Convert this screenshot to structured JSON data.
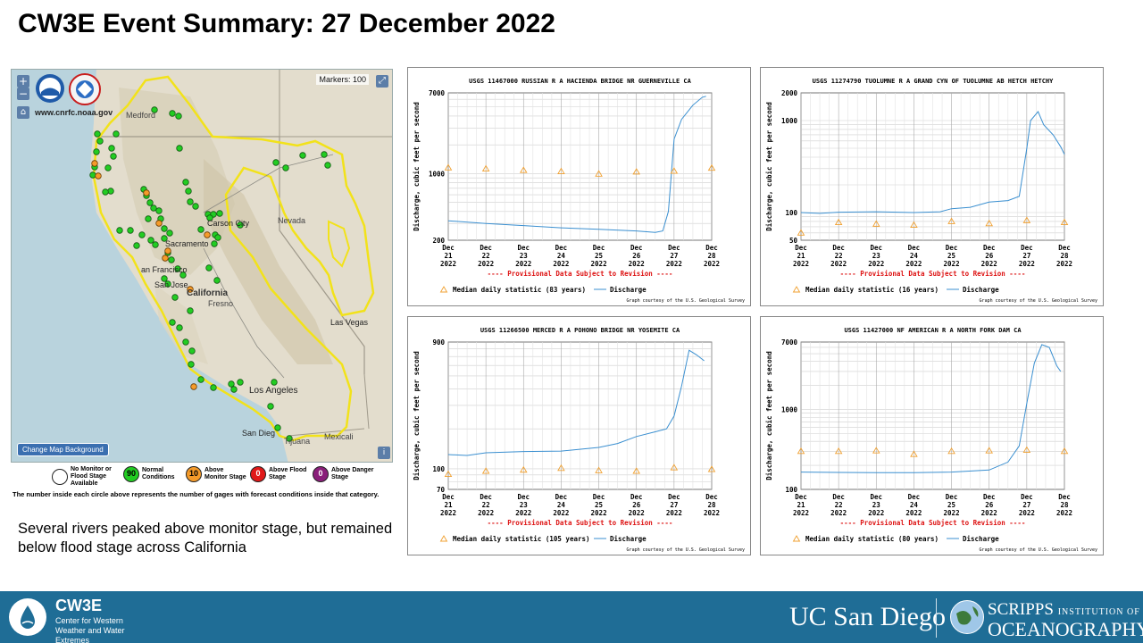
{
  "title": "CW3E Event Summary: 27 December 2022",
  "map": {
    "url_text": "www.cnrfc.noaa.gov",
    "markers_text": "Markers: 100",
    "change_bg_label": "Change Map Background",
    "zoom_in": "+",
    "zoom_out": "−",
    "home_icon": "home-icon",
    "info_label": "i",
    "labels": {
      "medford": "Medford",
      "carson_city": "Carson City",
      "nevada": "Nevada",
      "sacramento": "Sacramento",
      "san_francisco": "an Francisco",
      "san_jose": "San Jose",
      "california": "California",
      "fresno": "Fresno",
      "las_vegas": "Las Vegas",
      "los_angeles": "Los Angeles",
      "san_diego": "San Dieg",
      "mexicali": "Mexicali",
      "tijuana": "Tijuana"
    },
    "gauges_green": [
      [
        160,
        45
      ],
      [
        180,
        49
      ],
      [
        187,
        52
      ],
      [
        96,
        72
      ],
      [
        99,
        80
      ],
      [
        117,
        72
      ],
      [
        95,
        92
      ],
      [
        112,
        88
      ],
      [
        114,
        97
      ],
      [
        188,
        88
      ],
      [
        296,
        104
      ],
      [
        307,
        110
      ],
      [
        93,
        109
      ],
      [
        108,
        110
      ],
      [
        91,
        118
      ],
      [
        111,
        136
      ],
      [
        105,
        137
      ],
      [
        148,
        134
      ],
      [
        151,
        141
      ],
      [
        155,
        149
      ],
      [
        159,
        155
      ],
      [
        165,
        158
      ],
      [
        153,
        167
      ],
      [
        167,
        167
      ],
      [
        171,
        178
      ],
      [
        195,
        126
      ],
      [
        198,
        136
      ],
      [
        200,
        148
      ],
      [
        206,
        153
      ],
      [
        220,
        162
      ],
      [
        226,
        162
      ],
      [
        222,
        166
      ],
      [
        212,
        179
      ],
      [
        228,
        185
      ],
      [
        231,
        188
      ],
      [
        121,
        180
      ],
      [
        133,
        180
      ],
      [
        146,
        185
      ],
      [
        140,
        197
      ],
      [
        161,
        196
      ],
      [
        177,
        183
      ],
      [
        171,
        189
      ],
      [
        156,
        191
      ],
      [
        175,
        205
      ],
      [
        179,
        213
      ],
      [
        171,
        234
      ],
      [
        175,
        240
      ],
      [
        186,
        223
      ],
      [
        192,
        230
      ],
      [
        183,
        255
      ],
      [
        200,
        270
      ],
      [
        188,
        289
      ],
      [
        195,
        305
      ],
      [
        202,
        315
      ],
      [
        201,
        330
      ],
      [
        212,
        347
      ],
      [
        226,
        356
      ],
      [
        246,
        352
      ],
      [
        249,
        358
      ],
      [
        256,
        350
      ],
      [
        294,
        350
      ],
      [
        350,
        95
      ],
      [
        354,
        107
      ],
      [
        326,
        96
      ],
      [
        256,
        174
      ],
      [
        290,
        377
      ],
      [
        298,
        401
      ],
      [
        311,
        413
      ],
      [
        233,
        161
      ],
      [
        227,
        195
      ],
      [
        221,
        222
      ],
      [
        230,
        236
      ],
      [
        180,
        283
      ]
    ],
    "gauges_orange": [
      [
        93,
        105
      ],
      [
        97,
        119
      ],
      [
        151,
        138
      ],
      [
        165,
        172
      ],
      [
        219,
        185
      ],
      [
        175,
        203
      ],
      [
        172,
        211
      ],
      [
        200,
        246
      ],
      [
        204,
        355
      ]
    ]
  },
  "legend": {
    "items": [
      {
        "value": "",
        "label": "No Monitor or Flood Stage Available",
        "color": "#ffffff"
      },
      {
        "value": "90",
        "label": "Normal Conditions",
        "color": "#22cc22"
      },
      {
        "value": "10",
        "label": "Above Monitor Stage",
        "color": "#f59b2a"
      },
      {
        "value": "0",
        "label": "Above Flood Stage",
        "color": "#e01818"
      },
      {
        "value": "0",
        "label": "Above Danger Stage",
        "color": "#8a1f7a"
      }
    ],
    "note": "The number inside each circle above represents the number of gages with forecast conditions inside that category."
  },
  "summary": "Several rivers peaked above monitor stage, but remained below flood stage across California",
  "footer": {
    "cw3e": "CW3E",
    "cw3e_sub": "Center for Western Weather and Water Extremes",
    "ucsd": "UC San Diego",
    "scripps_a": "SCRIPPS",
    "scripps_b": "INSTITUTION OF",
    "scripps_c": "OCEANOGRAPHY"
  },
  "colors": {
    "discharge": "#3a8fd0",
    "median": "#f0a030",
    "provisional": "#dd1111",
    "footer_bg": "#1f6d96"
  },
  "chart_data": [
    {
      "type": "line",
      "title": "USGS 11467000 RUSSIAN R A HACIENDA BRIDGE NR GUERNEVILLE CA",
      "ylabel": "Discharge, cubic feet per second",
      "yscale": "log",
      "ylim": [
        200,
        7000
      ],
      "yticks": [
        200,
        1000,
        7000
      ],
      "xlim": [
        0,
        7
      ],
      "categories": [
        "Dec 21 2022",
        "Dec 22 2022",
        "Dec 23 2022",
        "Dec 24 2022",
        "Dec 25 2022",
        "Dec 26 2022",
        "Dec 27 2022",
        "Dec 28 2022"
      ],
      "provisional": "---- Provisional Data Subject to Revision ----",
      "legend_median": "Median daily statistic (83 years)",
      "legend_discharge": "Discharge",
      "credit": "Graph courtesy of the U.S. Geological Survey",
      "median": [
        [
          0,
          1150
        ],
        [
          1,
          1120
        ],
        [
          2,
          1080
        ],
        [
          3,
          1050
        ],
        [
          4,
          990
        ],
        [
          5,
          1040
        ],
        [
          6,
          1060
        ],
        [
          7,
          1140
        ]
      ],
      "discharge": [
        [
          0,
          320
        ],
        [
          1,
          300
        ],
        [
          2,
          285
        ],
        [
          3,
          270
        ],
        [
          4,
          260
        ],
        [
          5,
          250
        ],
        [
          5.5,
          242
        ],
        [
          5.7,
          250
        ],
        [
          5.85,
          400
        ],
        [
          6.0,
          2300
        ],
        [
          6.2,
          3700
        ],
        [
          6.5,
          5200
        ],
        [
          6.75,
          6300
        ],
        [
          6.85,
          6450
        ]
      ]
    },
    {
      "type": "line",
      "title": "USGS 11274790 TUOLUMNE R A GRAND CYN OF TUOLUMNE AB HETCH HETCHY",
      "ylabel": "Discharge, cubic feet per second",
      "yscale": "log",
      "ylim": [
        50,
        2000
      ],
      "yticks": [
        50,
        100,
        1000,
        2000
      ],
      "xlim": [
        0,
        7
      ],
      "categories": [
        "Dec 21 2022",
        "Dec 22 2022",
        "Dec 23 2022",
        "Dec 24 2022",
        "Dec 25 2022",
        "Dec 26 2022",
        "Dec 27 2022",
        "Dec 28 2022"
      ],
      "provisional": "---- Provisional Data Subject to Revision ----",
      "legend_median": "Median daily statistic (16 years)",
      "legend_discharge": "Discharge",
      "credit": "Graph courtesy of the U.S. Geological Survey",
      "median": [
        [
          0,
          60
        ],
        [
          1,
          78
        ],
        [
          2,
          75
        ],
        [
          3,
          73
        ],
        [
          4,
          80
        ],
        [
          5,
          76
        ],
        [
          6,
          82
        ],
        [
          7,
          78
        ]
      ],
      "discharge": [
        [
          0,
          100
        ],
        [
          0.5,
          98
        ],
        [
          1,
          101
        ],
        [
          2,
          102
        ],
        [
          3,
          100
        ],
        [
          3.7,
          102
        ],
        [
          4,
          110
        ],
        [
          4.5,
          114
        ],
        [
          5,
          130
        ],
        [
          5.5,
          135
        ],
        [
          5.8,
          150
        ],
        [
          6.0,
          500
        ],
        [
          6.1,
          1000
        ],
        [
          6.3,
          1250
        ],
        [
          6.45,
          900
        ],
        [
          6.7,
          700
        ],
        [
          6.9,
          520
        ],
        [
          7.0,
          430
        ]
      ]
    },
    {
      "type": "line",
      "title": "USGS 11266500 MERCED R A POHONO BRIDGE NR YOSEMITE CA",
      "ylabel": "Discharge, cubic feet per second",
      "yscale": "log",
      "ylim": [
        70,
        900
      ],
      "yticks": [
        70,
        100,
        900
      ],
      "xlim": [
        0,
        7
      ],
      "categories": [
        "Dec 21 2022",
        "Dec 22 2022",
        "Dec 23 2022",
        "Dec 24 2022",
        "Dec 25 2022",
        "Dec 26 2022",
        "Dec 27 2022",
        "Dec 28 2022"
      ],
      "provisional": "---- Provisional Data Subject to Revision ----",
      "legend_median": "Median daily statistic (105 years)",
      "legend_discharge": "Discharge",
      "credit": "Graph courtesy of the U.S. Geological Survey",
      "median": [
        [
          0,
          91
        ],
        [
          1,
          96
        ],
        [
          2,
          98
        ],
        [
          3,
          101
        ],
        [
          4,
          97
        ],
        [
          5,
          96
        ],
        [
          6,
          102
        ],
        [
          7,
          99
        ]
      ],
      "discharge": [
        [
          0,
          128
        ],
        [
          0.5,
          126
        ],
        [
          1,
          132
        ],
        [
          2,
          135
        ],
        [
          3,
          136
        ],
        [
          4,
          145
        ],
        [
          4.5,
          155
        ],
        [
          5,
          175
        ],
        [
          5.5,
          190
        ],
        [
          5.8,
          200
        ],
        [
          6.0,
          250
        ],
        [
          6.2,
          420
        ],
        [
          6.4,
          780
        ],
        [
          6.6,
          720
        ],
        [
          6.8,
          650
        ]
      ]
    },
    {
      "type": "line",
      "title": "USGS 11427000 NF AMERICAN R A NORTH FORK DAM CA",
      "ylabel": "Discharge, cubic feet per second",
      "yscale": "log",
      "ylim": [
        100,
        7000
      ],
      "yticks": [
        100,
        1000,
        7000
      ],
      "xlim": [
        0,
        7
      ],
      "categories": [
        "Dec 21 2022",
        "Dec 22 2022",
        "Dec 23 2022",
        "Dec 24 2022",
        "Dec 25 2022",
        "Dec 26 2022",
        "Dec 27 2022",
        "Dec 28 2022"
      ],
      "provisional": "---- Provisional Data Subject to Revision ----",
      "legend_median": "Median daily statistic (80 years)",
      "legend_discharge": "Discharge",
      "credit": "Graph courtesy of the U.S. Geological Survey",
      "median": [
        [
          0,
          300
        ],
        [
          1,
          300
        ],
        [
          2,
          305
        ],
        [
          3,
          275
        ],
        [
          4,
          300
        ],
        [
          5,
          305
        ],
        [
          6,
          310
        ],
        [
          7,
          300
        ]
      ],
      "discharge": [
        [
          0,
          165
        ],
        [
          1,
          163
        ],
        [
          2,
          162
        ],
        [
          3,
          162
        ],
        [
          4,
          165
        ],
        [
          5,
          175
        ],
        [
          5.5,
          220
        ],
        [
          5.8,
          350
        ],
        [
          6.0,
          1200
        ],
        [
          6.2,
          3800
        ],
        [
          6.4,
          6500
        ],
        [
          6.6,
          6000
        ],
        [
          6.8,
          3500
        ],
        [
          6.9,
          3000
        ]
      ]
    }
  ]
}
